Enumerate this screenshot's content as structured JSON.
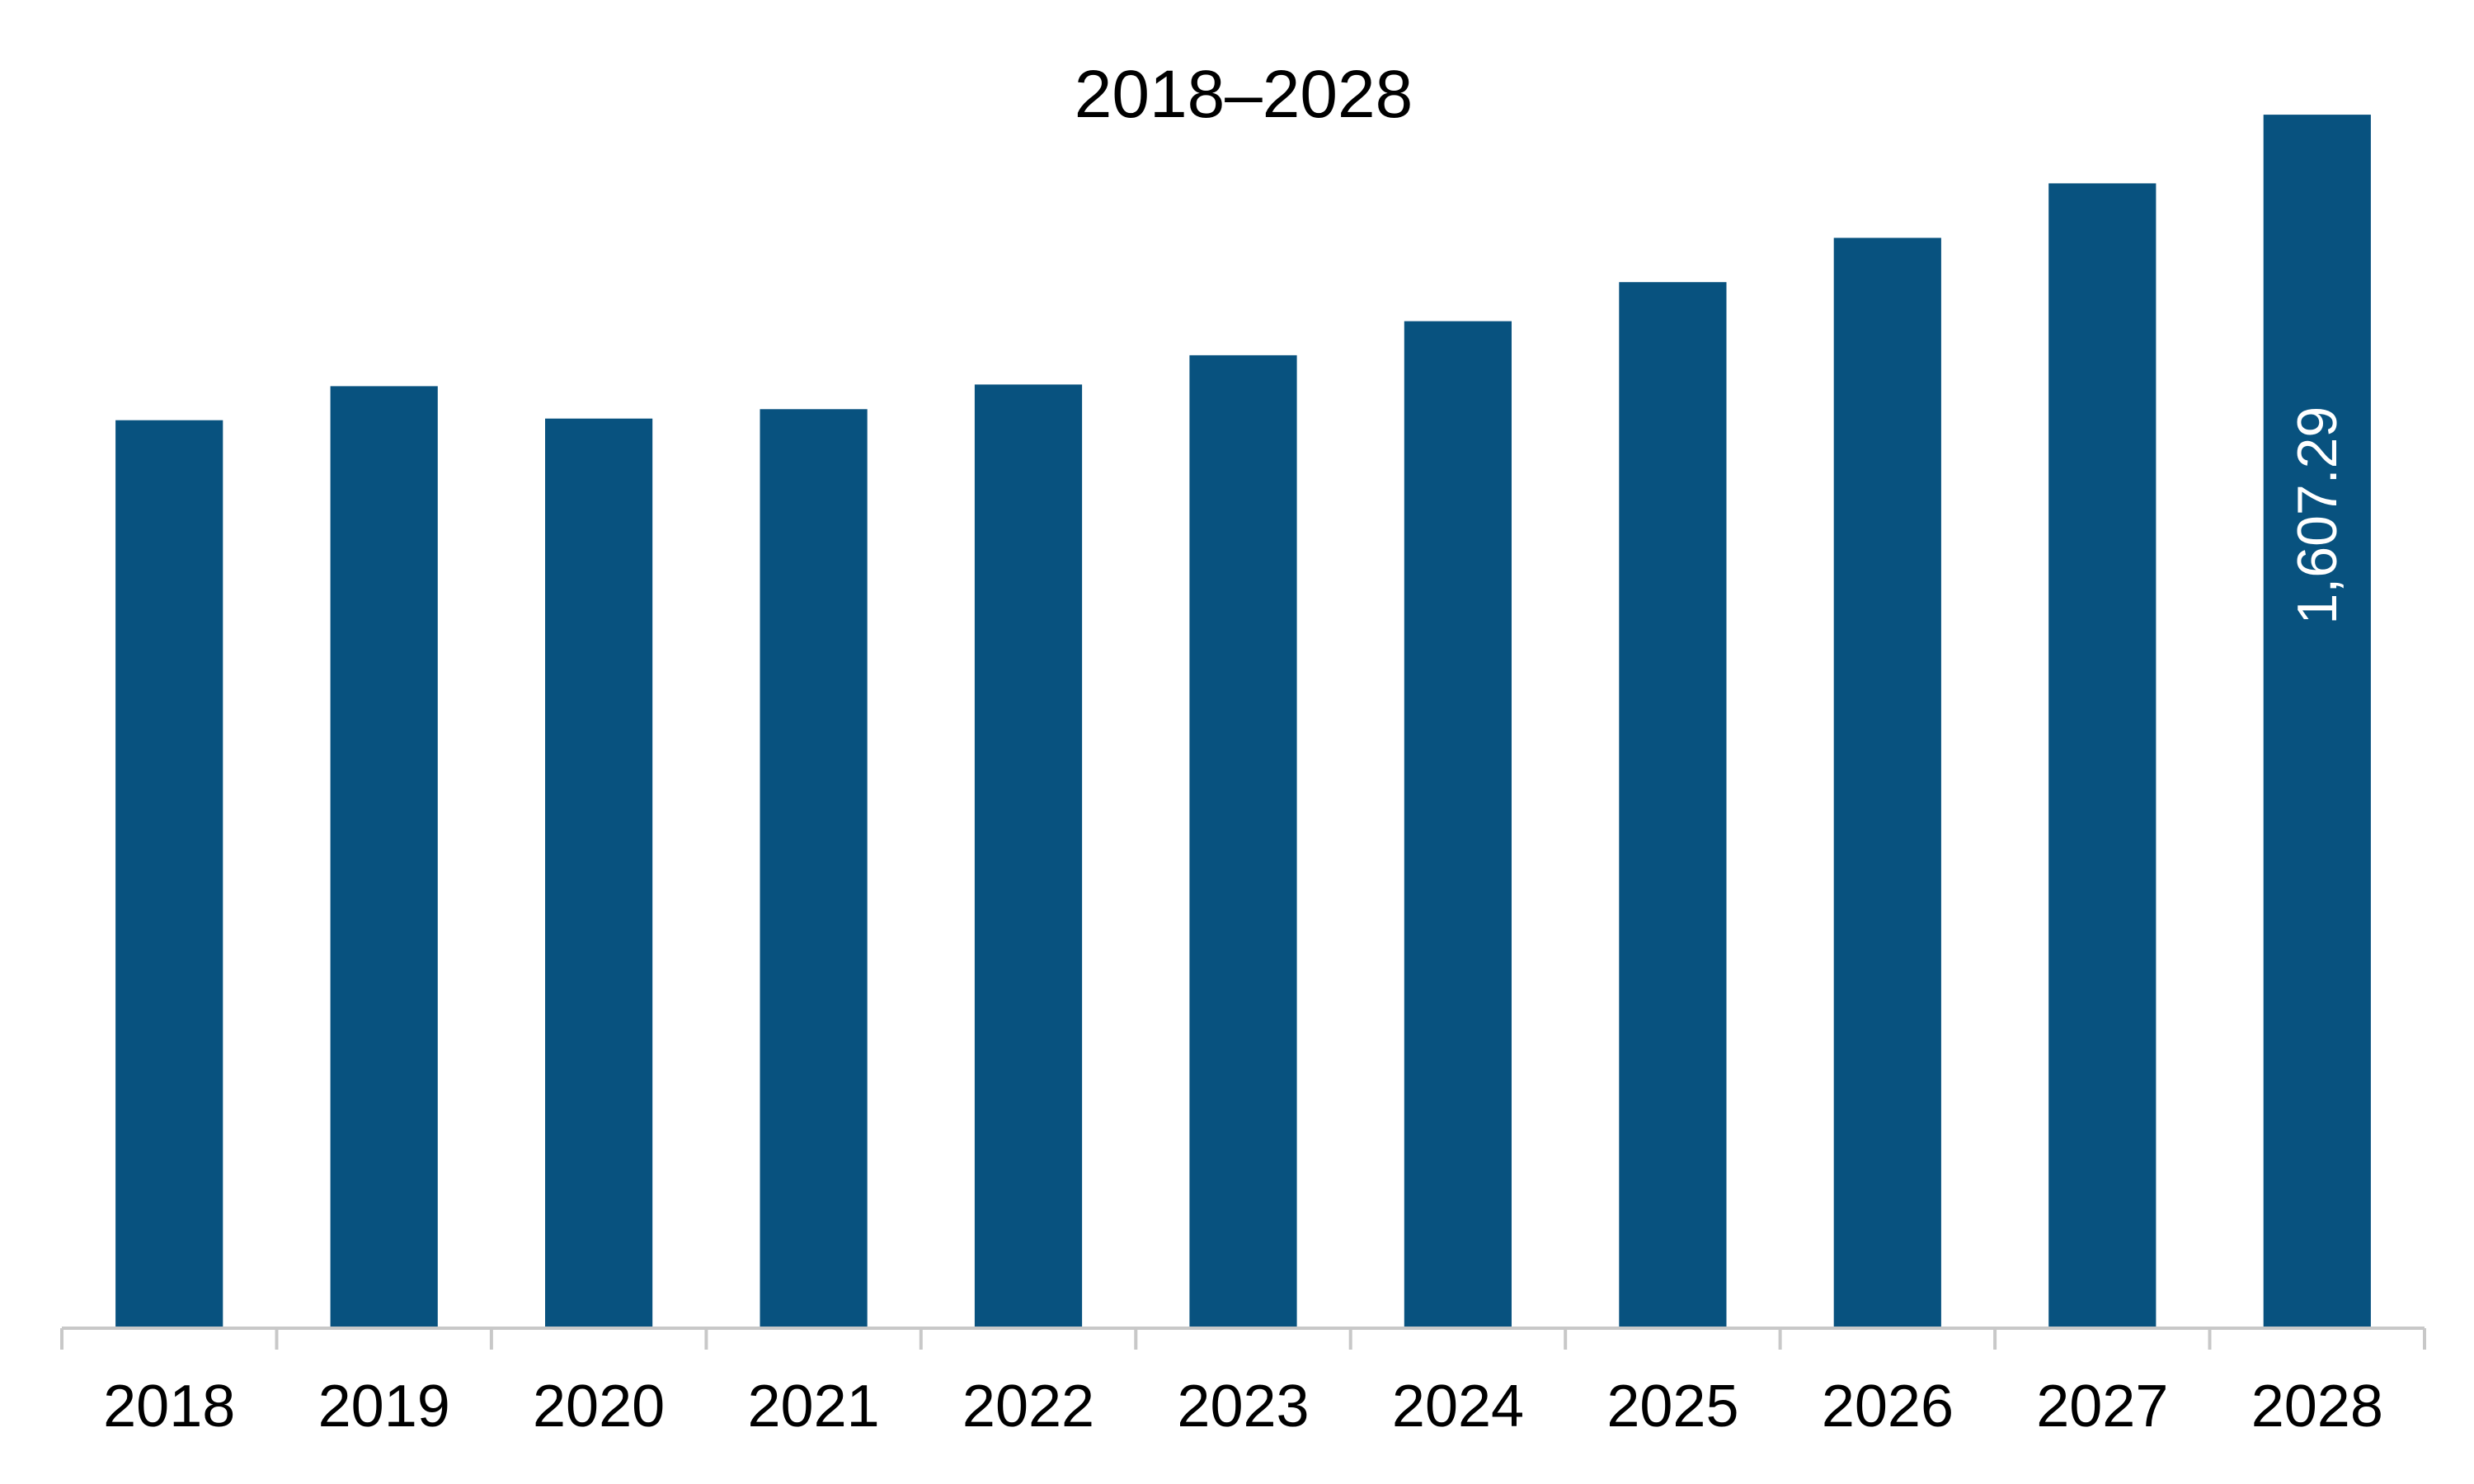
{
  "chart_data": {
    "type": "bar",
    "title": "2018–2028",
    "xlabel": "",
    "ylabel": "",
    "categories": [
      "2018",
      "2019",
      "2020",
      "2021",
      "2022",
      "2023",
      "2024",
      "2025",
      "2026",
      "2027",
      "2028"
    ],
    "values": [
      1202.6,
      1247.7,
      1204.8,
      1217.2,
      1249.9,
      1288.7,
      1333.8,
      1385.5,
      1444.2,
      1516.3,
      1607.29
    ],
    "data_labels": [
      {
        "category": "2028",
        "text": "1,607.29"
      }
    ],
    "ylim": [
      0,
      1650
    ],
    "grid": false,
    "legend": "none",
    "colors": {
      "bar": "#08527f",
      "axis": "#c8c8c8",
      "data_label": "#ffffff"
    }
  }
}
